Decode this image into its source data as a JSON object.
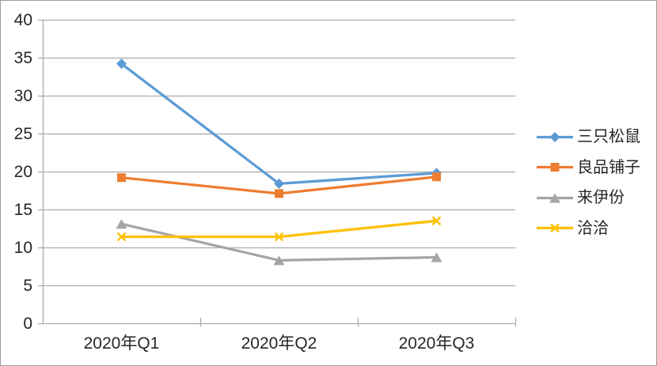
{
  "chart_data": {
    "type": "line",
    "title": "",
    "xlabel": "",
    "ylabel": "",
    "categories": [
      "2020年Q1",
      "2020年Q2",
      "2020年Q3"
    ],
    "series": [
      {
        "name": "三只松鼠",
        "values": [
          34.2,
          18.4,
          19.8
        ],
        "color": "#5B9BD5",
        "marker": "diamond"
      },
      {
        "name": "良品铺子",
        "values": [
          19.2,
          17.1,
          19.3
        ],
        "color": "#ED7D31",
        "marker": "square"
      },
      {
        "name": "来伊份",
        "values": [
          13.1,
          8.3,
          8.7
        ],
        "color": "#A5A5A5",
        "marker": "triangle"
      },
      {
        "name": "洽洽",
        "values": [
          11.4,
          11.4,
          13.5
        ],
        "color": "#FFC000",
        "marker": "x"
      }
    ],
    "ylim": [
      0,
      40
    ],
    "yticks": [
      0,
      5,
      10,
      15,
      20,
      25,
      30,
      35,
      40
    ],
    "grid": true,
    "legend_position": "right",
    "colors": {
      "axis_and_grid": "#ABABAB",
      "tick_text": "#262626",
      "background": "#FFFFFF",
      "frame_border": "#9B9B9B"
    }
  }
}
